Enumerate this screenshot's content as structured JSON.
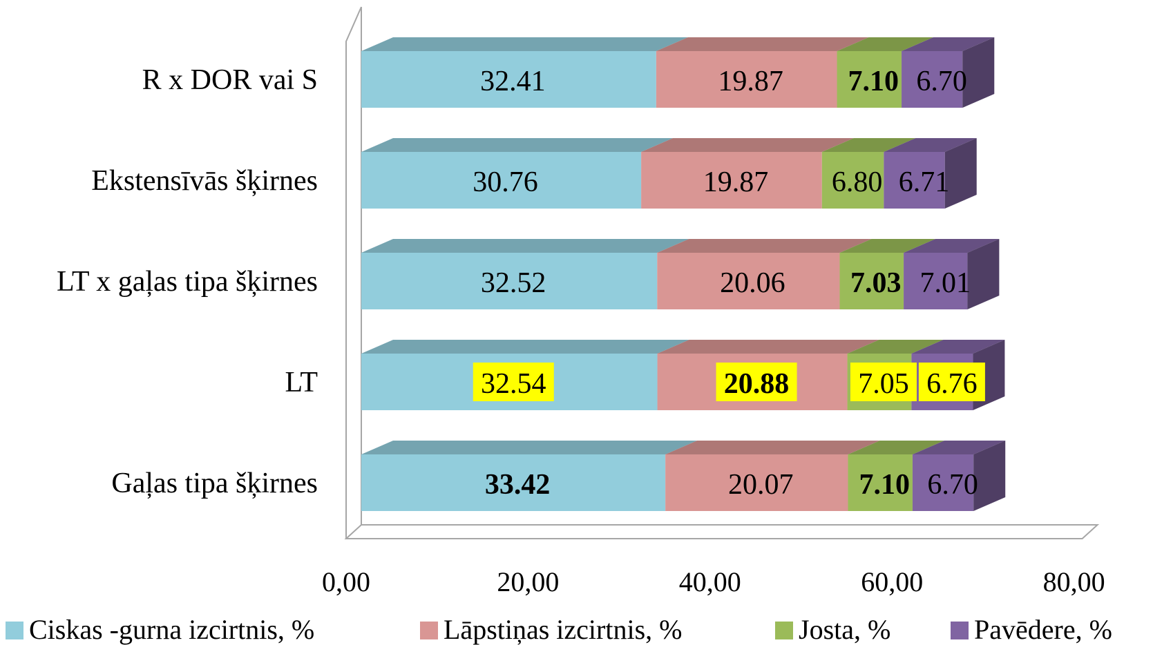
{
  "chart_data": {
    "type": "bar",
    "orientation": "horizontal",
    "stacked": true,
    "style": "3d",
    "categories": [
      "Gaļas tipa šķirnes",
      "LT",
      "LT x gaļas tipa šķirnes",
      "Ekstensīvās šķirnes",
      "R x DOR vai S"
    ],
    "series": [
      {
        "name": "Ciskas -gurna izcirtnis, %",
        "color": "#92cddc",
        "values": [
          33.42,
          32.54,
          32.52,
          30.76,
          32.41
        ],
        "labels": [
          "33.42",
          "32.54",
          "32.52",
          "30.76",
          "32.41"
        ]
      },
      {
        "name": "Lāpstiņas izcirtnis, %",
        "color": "#d99694",
        "values": [
          20.07,
          20.88,
          20.06,
          19.87,
          19.87
        ],
        "labels": [
          "20.07",
          "20.88",
          "20.06",
          "19.87",
          "19.87"
        ]
      },
      {
        "name": "Josta, %",
        "color": "#9bbb59",
        "values": [
          7.1,
          7.05,
          7.03,
          6.8,
          7.1
        ],
        "labels": [
          "7.10",
          "7.05",
          "7.03",
          "6.80",
          "7.10"
        ]
      },
      {
        "name": "Pavēdere, %",
        "color": "#8064a2",
        "values": [
          6.7,
          6.76,
          7.01,
          6.71,
          6.7
        ],
        "labels": [
          "6.70",
          "6.76",
          "7.01",
          "6.71",
          "6.70"
        ]
      }
    ],
    "bold_labels": [
      [
        0,
        0
      ],
      [
        0,
        2
      ],
      [
        1,
        1
      ],
      [
        2,
        2
      ],
      [
        4,
        2
      ]
    ],
    "highlighted_labels": [
      [
        1,
        0
      ],
      [
        1,
        1
      ],
      [
        1,
        2
      ],
      [
        1,
        3
      ]
    ],
    "highlight_color": "#ffff00",
    "xlim": [
      0,
      80
    ],
    "xticks": [
      0,
      20,
      40,
      60,
      80
    ],
    "xtick_labels": [
      "0,00",
      "20,00",
      "40,00",
      "60,00",
      "80,00"
    ],
    "grid": false,
    "legend_position": "bottom"
  }
}
